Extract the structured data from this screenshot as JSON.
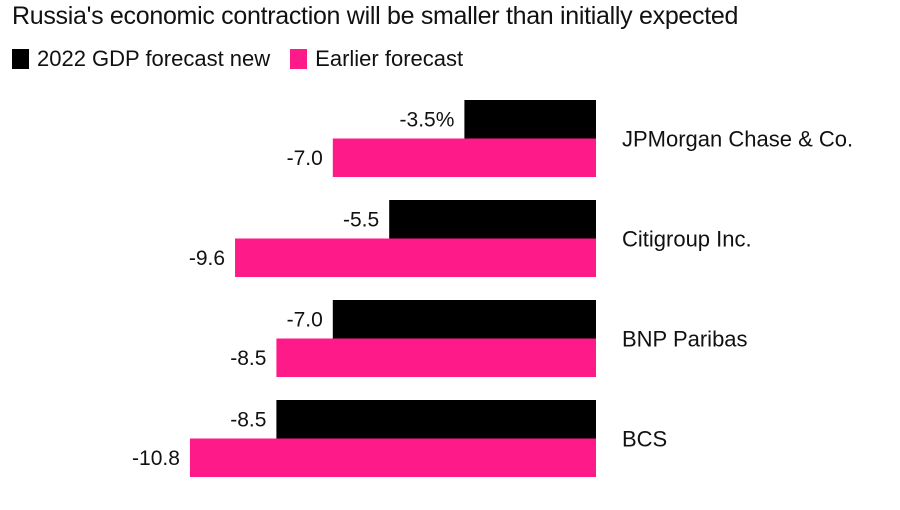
{
  "chart_data": {
    "type": "bar",
    "orientation": "horizontal",
    "title": "Russia's economic contraction will be smaller than initially expected",
    "categories": [
      "JPMorgan Chase & Co.",
      "Citigroup Inc.",
      "BNP Paribas",
      "BCS"
    ],
    "series": [
      {
        "name": "2022 GDP forecast new",
        "color": "#000000",
        "values": [
          -3.5,
          -5.5,
          -7.0,
          -8.5
        ],
        "labels": [
          "-3.5%",
          "-5.5",
          "-7.0",
          "-8.5"
        ]
      },
      {
        "name": "Earlier forecast",
        "color": "#ff1a8a",
        "values": [
          -7.0,
          -9.6,
          -8.5,
          -10.8
        ],
        "labels": [
          "-7.0",
          "-9.6",
          "-8.5",
          "-10.8"
        ]
      }
    ],
    "xlim": [
      -11,
      0
    ],
    "xlabel": "",
    "ylabel": "",
    "grid": false,
    "legend_position": "top-left"
  }
}
